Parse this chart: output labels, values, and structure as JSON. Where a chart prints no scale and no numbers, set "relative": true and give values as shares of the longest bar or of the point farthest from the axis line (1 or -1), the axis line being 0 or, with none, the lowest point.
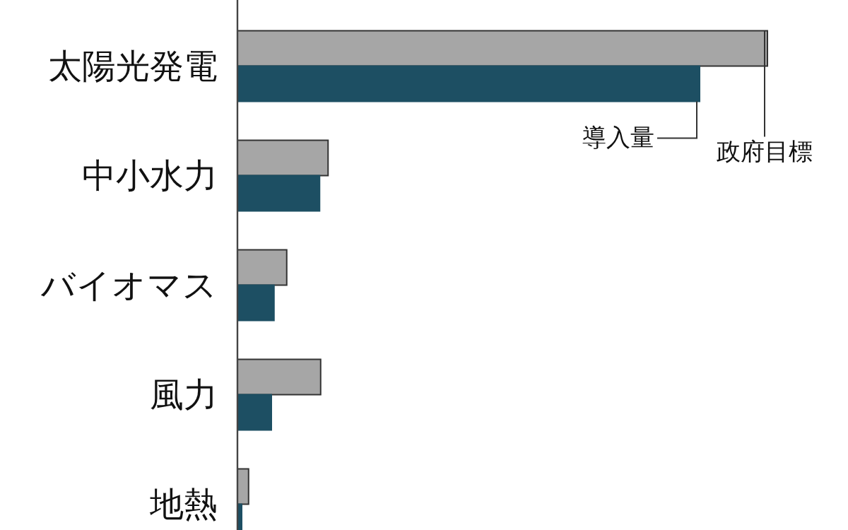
{
  "chart_data": {
    "type": "bar",
    "orientation": "horizontal",
    "relative": true,
    "categories": [
      "太陽光発電",
      "中小水力",
      "バイオマス",
      "風力",
      "地熱"
    ],
    "series": [
      {
        "name": "政府目標",
        "color": "#a6a6a6",
        "values": [
          1,
          0.171,
          0.093,
          0.157,
          0.021
        ]
      },
      {
        "name": "導入量",
        "color": "#1d4f63",
        "values": [
          0.872,
          0.155,
          0.069,
          0.064,
          0.008
        ]
      }
    ]
  }
}
